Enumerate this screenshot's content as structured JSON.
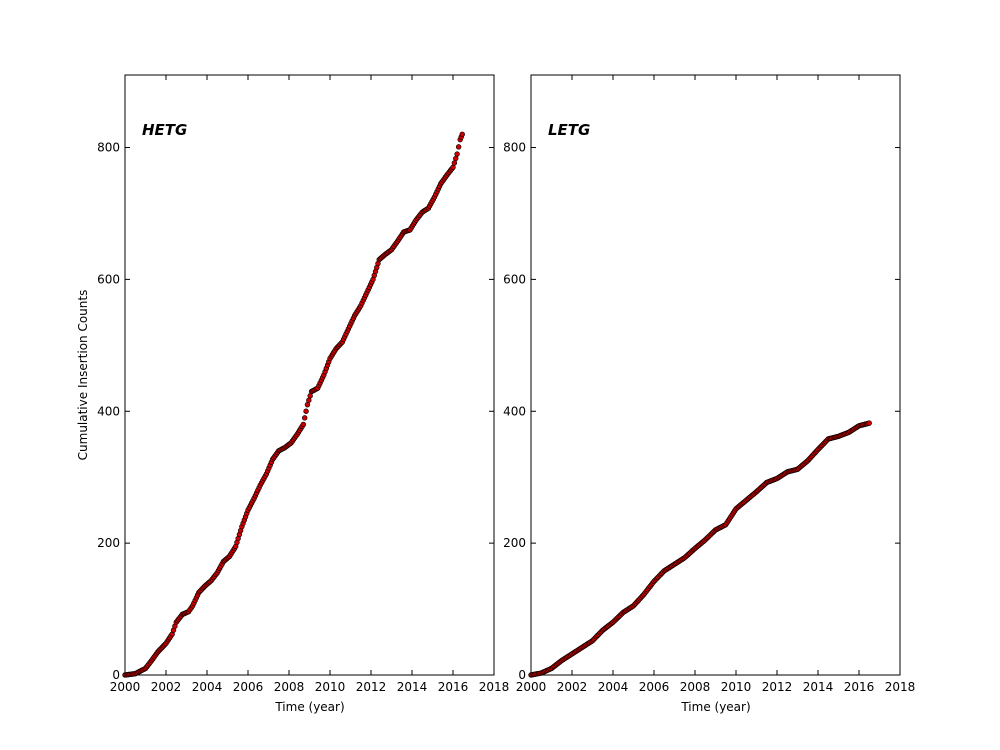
{
  "chart_data": [
    {
      "type": "scatter",
      "title": "",
      "panel_label": "HETG",
      "xlabel": "Time (year)",
      "ylabel": "Cumulative Insertion Counts",
      "xlim": [
        2000,
        2018
      ],
      "ylim": [
        0,
        910
      ],
      "xticks": [
        "2000",
        "2002",
        "2004",
        "2006",
        "2008",
        "2010",
        "2012",
        "2014",
        "2016",
        "2018"
      ],
      "yticks": [
        "0",
        "200",
        "400",
        "600",
        "800"
      ],
      "grid": false,
      "marker_color": "#cc0000",
      "series": [
        {
          "x": [
            2000.0,
            2000.5,
            2001.0,
            2001.3,
            2001.6,
            2002.0,
            2002.3,
            2002.5,
            2002.8,
            2003.1,
            2003.3,
            2003.6,
            2003.9,
            2004.2,
            2004.5,
            2004.8,
            2005.1,
            2005.4,
            2005.7,
            2006.0,
            2006.3,
            2006.6,
            2006.9,
            2007.2,
            2007.5,
            2007.8,
            2008.1,
            2008.4,
            2008.7,
            2008.9,
            2009.1,
            2009.4,
            2009.7,
            2010.0,
            2010.3,
            2010.6,
            2010.9,
            2011.2,
            2011.5,
            2011.8,
            2012.1,
            2012.4,
            2012.7,
            2013.0,
            2013.3,
            2013.6,
            2013.9,
            2014.2,
            2014.5,
            2014.8,
            2015.1,
            2015.4,
            2015.7,
            2016.0,
            2016.2,
            2016.35,
            2016.45
          ],
          "y": [
            0,
            2,
            10,
            22,
            35,
            48,
            62,
            80,
            92,
            96,
            105,
            125,
            135,
            143,
            155,
            172,
            180,
            195,
            225,
            250,
            268,
            288,
            305,
            327,
            340,
            345,
            352,
            365,
            380,
            410,
            430,
            435,
            455,
            480,
            495,
            505,
            525,
            545,
            560,
            580,
            600,
            630,
            638,
            645,
            658,
            672,
            675,
            690,
            702,
            708,
            725,
            745,
            758,
            770,
            790,
            812,
            820
          ]
        }
      ]
    },
    {
      "type": "scatter",
      "title": "",
      "panel_label": "LETG",
      "xlabel": "Time (year)",
      "ylabel": "",
      "xlim": [
        2000,
        2018
      ],
      "ylim": [
        0,
        910
      ],
      "xticks": [
        "2000",
        "2002",
        "2004",
        "2006",
        "2008",
        "2010",
        "2012",
        "2014",
        "2016",
        "2018"
      ],
      "yticks": [
        "0",
        "200",
        "400",
        "600",
        "800"
      ],
      "grid": false,
      "marker_color": "#cc0000",
      "series": [
        {
          "x": [
            2000.0,
            2000.5,
            2001.0,
            2001.5,
            2002.0,
            2002.5,
            2003.0,
            2003.5,
            2004.0,
            2004.5,
            2005.0,
            2005.5,
            2006.0,
            2006.5,
            2007.0,
            2007.5,
            2008.0,
            2008.5,
            2009.0,
            2009.5,
            2010.0,
            2010.5,
            2011.0,
            2011.5,
            2012.0,
            2012.5,
            2013.0,
            2013.5,
            2014.0,
            2014.5,
            2015.0,
            2015.5,
            2016.0,
            2016.5
          ],
          "y": [
            0,
            3,
            10,
            22,
            32,
            42,
            52,
            68,
            80,
            95,
            105,
            122,
            142,
            158,
            168,
            178,
            192,
            205,
            220,
            228,
            252,
            265,
            278,
            292,
            298,
            308,
            312,
            325,
            342,
            358,
            362,
            368,
            378,
            382
          ]
        }
      ]
    }
  ]
}
